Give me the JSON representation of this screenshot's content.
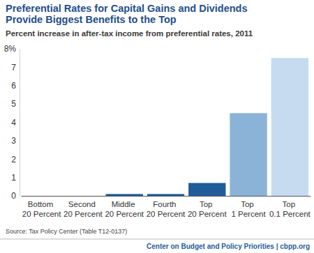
{
  "chart_data": {
    "type": "bar",
    "title": "Preferential Rates for Capital Gains and Dividends Provide Biggest Benefits to the Top",
    "subtitle": "Percent increase in after-tax income from preferential rates, 2011",
    "source": "Source: Tax Policy Center (Table T12-0137)",
    "credit": "Center on Budget and Policy Priorities | cbpp.org",
    "categories": [
      "Bottom 20 Percent",
      "Second 20 Percent",
      "Middle 20 Percent",
      "Fourth 20 Percent",
      "Top 20 Percent",
      "Top 1 Percent",
      "Top 0.1 Percent"
    ],
    "values": [
      0,
      0,
      0.1,
      0.1,
      0.7,
      4.5,
      7.5
    ],
    "colors": [
      "#1f5c99",
      "#1f5c99",
      "#1f5c99",
      "#1f5c99",
      "#1f5c99",
      "#8bb3d8",
      "#c6dbef"
    ],
    "ylim": [
      0,
      8
    ],
    "yticks": [
      0,
      1,
      2,
      3,
      4,
      5,
      6,
      7,
      {
        "value": 8,
        "label": "8%"
      }
    ],
    "grid": false
  }
}
